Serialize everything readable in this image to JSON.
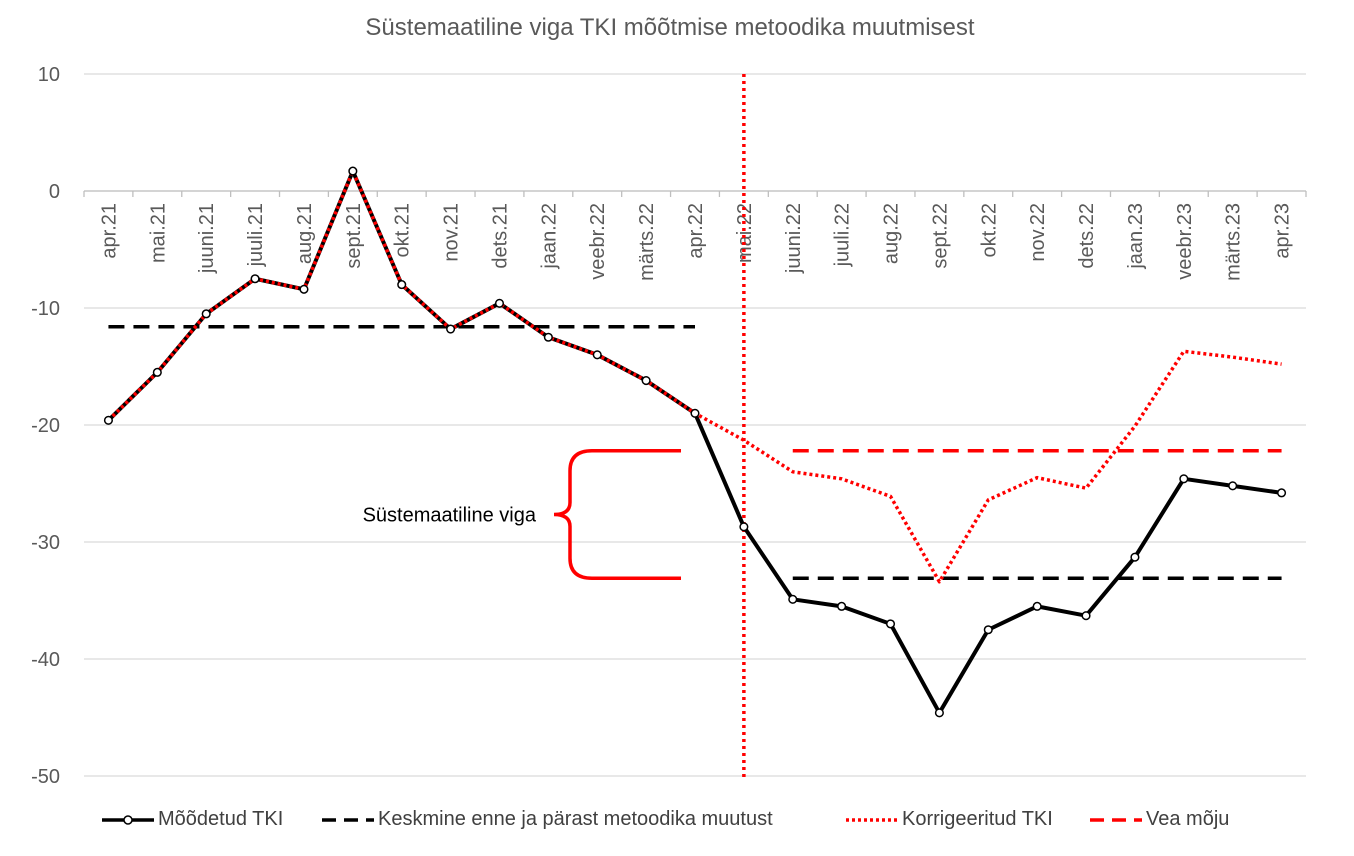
{
  "chart_data": {
    "type": "line",
    "title": "Süstemaatiline viga TKI mõõtmise metoodika muutmisest",
    "xlabel": "",
    "ylabel": "",
    "ylim": [
      -50,
      10
    ],
    "yticks": [
      10,
      0,
      -10,
      -20,
      -30,
      -40,
      -50
    ],
    "grid": true,
    "legend_position": "bottom",
    "categories": [
      "apr.21",
      "mai.21",
      "juuni.21",
      "juuli.21",
      "aug.21",
      "sept.21",
      "okt.21",
      "nov.21",
      "dets.21",
      "jaan.22",
      "veebr.22",
      "märts.22",
      "apr.22",
      "mai.22",
      "juuni.22",
      "juuli.22",
      "aug.22",
      "sept.22",
      "okt.22",
      "nov.22",
      "dets.22",
      "jaan.23",
      "veebr.23",
      "märts.23",
      "apr.23"
    ],
    "series": [
      {
        "name": "Mõõdetud TKI",
        "color": "#000000",
        "style": "solid-markers",
        "values": [
          -19.6,
          -15.5,
          -10.5,
          -7.5,
          -8.4,
          1.7,
          -8.0,
          -11.8,
          -9.6,
          -12.5,
          -14.0,
          -16.2,
          -19.0,
          -28.7,
          -34.9,
          -35.5,
          -37.0,
          -44.6,
          -37.5,
          -35.5,
          -36.3,
          -31.3,
          -24.6,
          -25.2,
          -25.8
        ]
      },
      {
        "name": "Keskmine enne ja pärast metoodika muutust",
        "color": "#000000",
        "style": "dashed",
        "segments": [
          {
            "from": "apr.21",
            "to": "apr.22",
            "value": -11.6
          },
          {
            "from": "juuni.22",
            "to": "apr.23",
            "value": -33.1
          }
        ]
      },
      {
        "name": "Korrigeeritud TKI",
        "color": "#ff0000",
        "style": "dotted",
        "values": [
          -19.6,
          -15.5,
          -10.5,
          -7.5,
          -8.4,
          1.7,
          -8.0,
          -11.8,
          -9.6,
          -12.5,
          -14.0,
          -16.2,
          -19.0,
          -21.3,
          -24.0,
          -24.6,
          -26.1,
          -33.4,
          -26.4,
          -24.5,
          -25.4,
          -20.1,
          -13.7,
          -14.2,
          -14.8
        ]
      },
      {
        "name": "Vea mõju",
        "color": "#ff0000",
        "style": "dashed",
        "segments": [
          {
            "from": "juuni.22",
            "to": "apr.23",
            "value": -22.2
          }
        ]
      }
    ],
    "annotations": {
      "vertical_line": {
        "at": "mai.22",
        "color": "#ff0000",
        "style": "dotted"
      },
      "brace": {
        "label": "Süstemaatiline viga",
        "from_value": -22.2,
        "to_value": -33.1,
        "color": "#ff0000"
      }
    }
  }
}
